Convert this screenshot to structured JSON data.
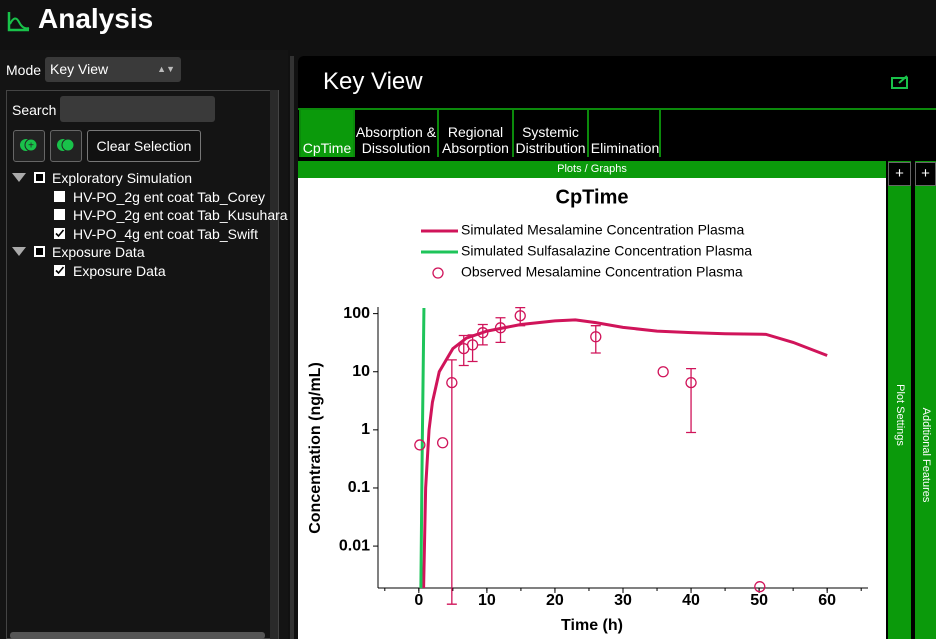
{
  "header": {
    "title": "Analysis"
  },
  "sidebar": {
    "mode_label": "Mode",
    "mode_value": "Key View",
    "search_label": "Search",
    "clear_button": "Clear Selection",
    "tree": [
      {
        "label": "Exploratory Simulation",
        "state": "partial",
        "children": [
          {
            "label": "HV-PO_2g ent coat Tab_Corey",
            "state": "unchecked"
          },
          {
            "label": "HV-PO_2g ent coat Tab_Kusuhara",
            "state": "unchecked"
          },
          {
            "label": "HV-PO_4g ent coat Tab_Swift",
            "state": "checked"
          }
        ]
      },
      {
        "label": "Exposure Data",
        "state": "partial",
        "children": [
          {
            "label": "Exposure Data",
            "state": "checked"
          }
        ]
      }
    ]
  },
  "panel": {
    "title": "Key View",
    "tabs": [
      "CpTime",
      "Absorption & Dissolution",
      "Regional Absorption",
      "Systemic Distribution",
      "Elimination"
    ],
    "active_tab": 0,
    "subbar": "Plots / Graphs",
    "side_tabs": [
      {
        "button": "+",
        "label": "Plot Settings"
      },
      {
        "button": "+",
        "label": "Additional Features"
      }
    ]
  },
  "chart_data": {
    "type": "line",
    "title": "CpTime",
    "x_label": "Time (h)",
    "y_label": "Concentration (ng/mL)",
    "log_y": true,
    "xlim": [
      -6,
      66
    ],
    "xticks": [
      0,
      10,
      20,
      30,
      40,
      50,
      60
    ],
    "ylim": [
      0.0019,
      130
    ],
    "yticks": [
      0.01,
      0.1,
      1,
      10,
      100
    ],
    "series": [
      {
        "name": "Simulated Mesalamine Concentration Plasma",
        "color": "#d0145a",
        "type": "line",
        "x": [
          0.7,
          1,
          1.5,
          2,
          3,
          5,
          7,
          10,
          15,
          20,
          23,
          26,
          30,
          35,
          40,
          45,
          51,
          55,
          60
        ],
        "values": [
          0.0019,
          0.1,
          1,
          3,
          10,
          25,
          38,
          50,
          65,
          75,
          78,
          70,
          58,
          50,
          47,
          45,
          44,
          32,
          19
        ]
      },
      {
        "name": "Simulated Sulfasalazine Concentration Plasma",
        "color": "#1ec45a",
        "type": "line",
        "x": [
          0.3,
          0.5,
          0.75
        ],
        "values": [
          0.0019,
          0.5,
          125
        ]
      },
      {
        "name": "Observed Mesalamine Concentration Plasma",
        "color": "#d0145a",
        "type": "scatter",
        "x": [
          0.15,
          3.5,
          4.85,
          6.6,
          7.9,
          9.4,
          12,
          14.9,
          26,
          35.9,
          40,
          50.1
        ],
        "values": [
          0.55,
          0.6,
          6.5,
          25,
          29,
          47,
          57,
          92,
          40,
          10,
          6.5,
          0.002
        ],
        "lower": [
          null,
          null,
          0.001,
          12.8,
          15,
          29,
          32,
          62,
          21,
          null,
          0.9,
          null
        ],
        "upper": [
          null,
          null,
          16,
          42,
          43,
          65,
          85,
          127,
          62,
          null,
          11.3,
          null
        ]
      }
    ]
  }
}
